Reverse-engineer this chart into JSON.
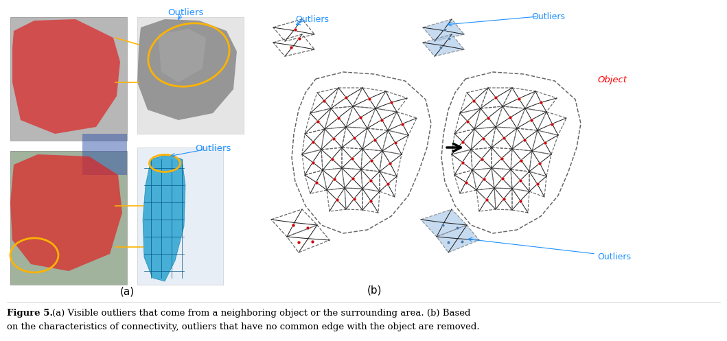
{
  "figure_caption_line1_plain": "(a) Visible outliers that come from a neighboring object or the surrounding area. (b) Based",
  "figure_caption_line1_bold": "Figure 5.",
  "figure_caption_line2": "on the characteristics of connectivity, outliers that have no common edge with the object are removed.",
  "label_a": "(a)",
  "label_b": "(b)",
  "outliers_color": "#1E90FF",
  "object_color": "#FF0000",
  "blue_fill": "#A8C8E8",
  "arrow_color": "#000000",
  "dashed_color": "#666666",
  "dot_color": "#CC0000",
  "blue_dot_color": "#4477AA",
  "yellow_color": "#FFB300",
  "bg_color": "#FFFFFF",
  "fig_width": 10.59,
  "fig_height": 4.97,
  "mesh_line_color": "#555555",
  "solid_line_color": "#222222"
}
